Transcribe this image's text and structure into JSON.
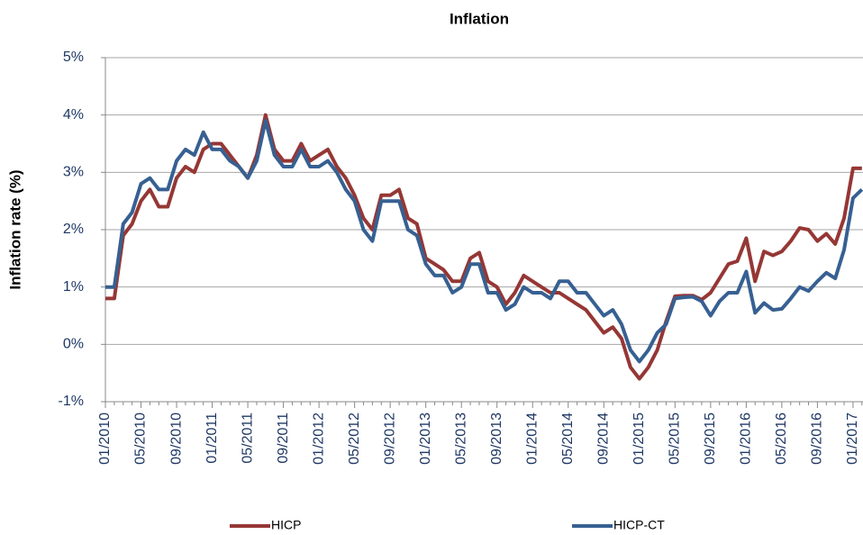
{
  "chart_data": {
    "type": "line",
    "title": "Inflation",
    "y_label": "Inflation rate (%)",
    "categories": [
      "01/2010",
      null,
      null,
      null,
      "05/2010",
      null,
      null,
      null,
      "09/2010",
      null,
      null,
      null,
      "01/2011",
      null,
      null,
      null,
      "05/2011",
      null,
      null,
      null,
      "09/2011",
      null,
      null,
      null,
      "01/2012",
      null,
      null,
      null,
      "05/2012",
      null,
      null,
      null,
      "09/2012",
      null,
      null,
      null,
      "01/2013",
      null,
      null,
      null,
      "05/2013",
      null,
      null,
      null,
      "09/2013",
      null,
      null,
      null,
      "01/2014",
      null,
      null,
      null,
      "05/2014",
      null,
      null,
      null,
      "09/2014",
      null,
      null,
      null,
      "01/2015",
      null,
      null,
      null,
      "05/2015",
      null,
      null,
      null,
      "09/2015",
      null,
      null,
      null,
      "01/2016",
      null,
      null,
      null,
      "05/2016",
      null,
      null,
      null,
      "09/2016",
      null,
      null,
      null,
      "01/2017",
      null
    ],
    "series": [
      {
        "name": "HICP",
        "color": "#953735",
        "values": [
          0.8,
          0.8,
          1.9,
          2.1,
          2.5,
          2.7,
          2.4,
          2.4,
          2.9,
          3.1,
          3.0,
          3.4,
          3.5,
          3.5,
          3.3,
          3.1,
          2.9,
          3.3,
          4.0,
          3.4,
          3.2,
          3.2,
          3.5,
          3.2,
          3.3,
          3.4,
          3.1,
          2.9,
          2.6,
          2.2,
          2.0,
          2.6,
          2.6,
          2.7,
          2.2,
          2.1,
          1.5,
          1.4,
          1.3,
          1.1,
          1.1,
          1.5,
          1.6,
          1.1,
          1.0,
          0.7,
          0.9,
          1.2,
          1.1,
          1.0,
          0.9,
          0.9,
          0.8,
          0.7,
          0.6,
          0.4,
          0.2,
          0.3,
          0.1,
          -0.4,
          -0.6,
          -0.4,
          -0.1,
          0.4,
          0.84,
          0.85,
          0.85,
          0.78,
          0.9,
          1.15,
          1.4,
          1.45,
          1.85,
          1.1,
          1.62,
          1.55,
          1.62,
          1.8,
          2.03,
          2.0,
          1.8,
          1.93,
          1.75,
          2.2,
          3.07,
          3.07
        ]
      },
      {
        "name": "HICP-CT",
        "color": "#376092",
        "values": [
          1.0,
          1.0,
          2.1,
          2.3,
          2.8,
          2.9,
          2.7,
          2.7,
          3.2,
          3.4,
          3.3,
          3.7,
          3.4,
          3.4,
          3.2,
          3.1,
          2.9,
          3.2,
          3.9,
          3.3,
          3.1,
          3.1,
          3.4,
          3.1,
          3.1,
          3.2,
          3.0,
          2.7,
          2.5,
          2.0,
          1.8,
          2.5,
          2.5,
          2.5,
          2.0,
          1.9,
          1.4,
          1.2,
          1.2,
          0.9,
          1.0,
          1.4,
          1.4,
          0.9,
          0.9,
          0.6,
          0.7,
          1.0,
          0.9,
          0.9,
          0.8,
          1.1,
          1.1,
          0.9,
          0.9,
          0.7,
          0.5,
          0.6,
          0.35,
          -0.1,
          -0.3,
          -0.1,
          0.2,
          0.35,
          0.8,
          0.82,
          0.83,
          0.75,
          0.5,
          0.75,
          0.9,
          0.9,
          1.27,
          0.55,
          0.72,
          0.6,
          0.62,
          0.8,
          1.0,
          0.93,
          1.1,
          1.25,
          1.15,
          1.65,
          2.55,
          2.7
        ]
      }
    ],
    "ylim": [
      -1,
      5
    ],
    "yticks": [
      {
        "value": -1,
        "label": "-1%"
      },
      {
        "value": 0,
        "label": "0%"
      },
      {
        "value": 1,
        "label": "1%"
      },
      {
        "value": 2,
        "label": "2%"
      },
      {
        "value": 3,
        "label": "3%"
      },
      {
        "value": 4,
        "label": "4%"
      },
      {
        "value": 5,
        "label": "5%"
      }
    ],
    "grid": true,
    "legend": "bottom"
  }
}
